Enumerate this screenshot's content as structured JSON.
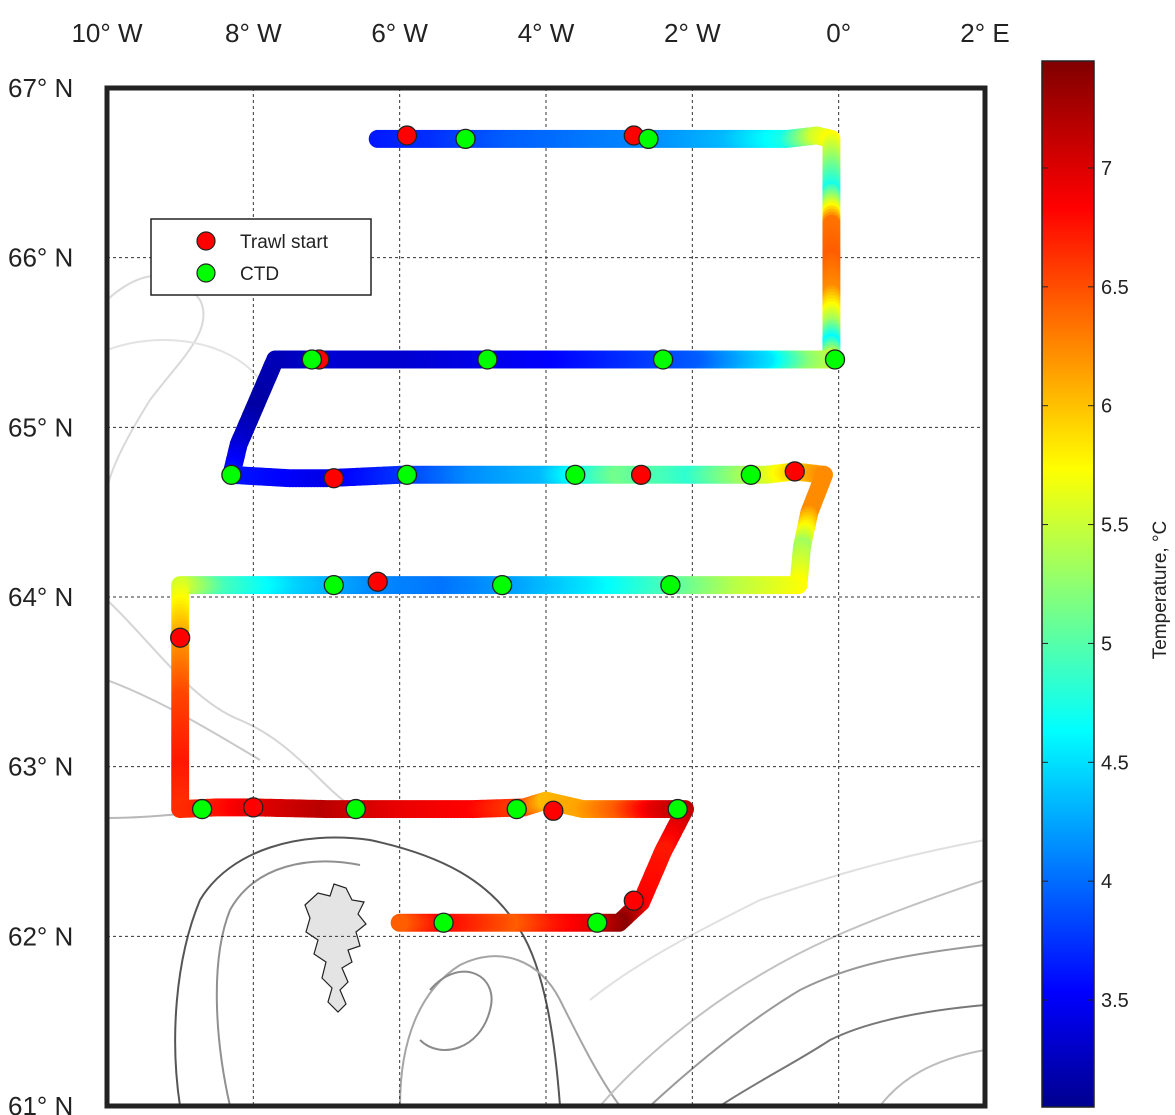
{
  "chart_data": {
    "type": "scatter",
    "title": "",
    "x_axis": {
      "range": [
        -10,
        2
      ],
      "ticks": [
        -10,
        -8,
        -6,
        -4,
        -2,
        0,
        2
      ],
      "tick_labels": [
        "10° W",
        "8° W",
        "6° W",
        "4° W",
        "2° W",
        "0°",
        "2° E"
      ]
    },
    "y_axis": {
      "range": [
        61,
        67
      ],
      "ticks": [
        61,
        62,
        63,
        64,
        65,
        66,
        67
      ],
      "tick_labels": [
        "61° N",
        "62° N",
        "63° N",
        "64° N",
        "65° N",
        "66° N",
        "67° N"
      ]
    },
    "grid": true,
    "legend": {
      "placement": "top-left",
      "entries": [
        {
          "label": "Trawl start",
          "color": "#ff0000"
        },
        {
          "label": "CTD",
          "color": "#00ff00"
        }
      ]
    },
    "colorbar": {
      "label": "Temperature, °C",
      "range": [
        3.05,
        7.45
      ],
      "ticks": [
        3.5,
        4,
        4.5,
        5,
        5.5,
        6,
        6.5,
        7
      ],
      "tick_labels": [
        "3.5",
        "4",
        "4.5",
        "5",
        "5.5",
        "6",
        "6.5",
        "7"
      ],
      "colormap": "jet"
    },
    "track": [
      {
        "lon": -6.3,
        "lat": 66.7,
        "t": 3.7
      },
      {
        "lon": -5.5,
        "lat": 66.7,
        "t": 3.8
      },
      {
        "lon": -4.5,
        "lat": 66.7,
        "t": 4.0
      },
      {
        "lon": -3.5,
        "lat": 66.7,
        "t": 4.1
      },
      {
        "lon": -2.5,
        "lat": 66.7,
        "t": 4.2
      },
      {
        "lon": -1.5,
        "lat": 66.7,
        "t": 4.4
      },
      {
        "lon": -0.7,
        "lat": 66.7,
        "t": 4.8
      },
      {
        "lon": -0.3,
        "lat": 66.72,
        "t": 5.6
      },
      {
        "lon": -0.1,
        "lat": 66.7,
        "t": 5.8
      },
      {
        "lon": -0.1,
        "lat": 66.4,
        "t": 4.8
      },
      {
        "lon": -0.1,
        "lat": 66.2,
        "t": 6.4
      },
      {
        "lon": -0.1,
        "lat": 66.0,
        "t": 6.5
      },
      {
        "lon": -0.1,
        "lat": 65.8,
        "t": 6.3
      },
      {
        "lon": -0.1,
        "lat": 65.6,
        "t": 5.4
      },
      {
        "lon": -0.1,
        "lat": 65.5,
        "t": 4.7
      },
      {
        "lon": -0.1,
        "lat": 65.4,
        "t": 5.6
      },
      {
        "lon": -0.5,
        "lat": 65.4,
        "t": 5.3
      },
      {
        "lon": -1.0,
        "lat": 65.4,
        "t": 4.6
      },
      {
        "lon": -2.0,
        "lat": 65.4,
        "t": 4.0
      },
      {
        "lon": -3.0,
        "lat": 65.4,
        "t": 3.8
      },
      {
        "lon": -4.0,
        "lat": 65.4,
        "t": 3.6
      },
      {
        "lon": -5.0,
        "lat": 65.4,
        "t": 3.5
      },
      {
        "lon": -6.0,
        "lat": 65.4,
        "t": 3.4
      },
      {
        "lon": -7.0,
        "lat": 65.4,
        "t": 3.4
      },
      {
        "lon": -7.7,
        "lat": 65.4,
        "t": 3.3
      },
      {
        "lon": -8.0,
        "lat": 65.1,
        "t": 3.2
      },
      {
        "lon": -8.2,
        "lat": 64.9,
        "t": 3.4
      },
      {
        "lon": -8.3,
        "lat": 64.72,
        "t": 3.7
      },
      {
        "lon": -7.5,
        "lat": 64.7,
        "t": 3.6
      },
      {
        "lon": -7.0,
        "lat": 64.7,
        "t": 3.5
      },
      {
        "lon": -6.0,
        "lat": 64.72,
        "t": 3.8
      },
      {
        "lon": -5.0,
        "lat": 64.72,
        "t": 4.2
      },
      {
        "lon": -4.0,
        "lat": 64.72,
        "t": 4.4
      },
      {
        "lon": -3.0,
        "lat": 64.72,
        "t": 5.2
      },
      {
        "lon": -2.0,
        "lat": 64.72,
        "t": 4.9
      },
      {
        "lon": -1.0,
        "lat": 64.72,
        "t": 5.6
      },
      {
        "lon": -0.6,
        "lat": 64.74,
        "t": 6.0
      },
      {
        "lon": -0.2,
        "lat": 64.72,
        "t": 6.3
      },
      {
        "lon": -0.4,
        "lat": 64.5,
        "t": 6.3
      },
      {
        "lon": -0.5,
        "lat": 64.3,
        "t": 5.4
      },
      {
        "lon": -0.55,
        "lat": 64.07,
        "t": 5.8
      },
      {
        "lon": -1.5,
        "lat": 64.07,
        "t": 5.5
      },
      {
        "lon": -2.5,
        "lat": 64.07,
        "t": 5.0
      },
      {
        "lon": -3.5,
        "lat": 64.07,
        "t": 4.6
      },
      {
        "lon": -4.5,
        "lat": 64.07,
        "t": 4.3
      },
      {
        "lon": -5.5,
        "lat": 64.07,
        "t": 4.1
      },
      {
        "lon": -6.5,
        "lat": 64.07,
        "t": 4.2
      },
      {
        "lon": -7.5,
        "lat": 64.07,
        "t": 4.5
      },
      {
        "lon": -8.5,
        "lat": 64.07,
        "t": 5.0
      },
      {
        "lon": -9.0,
        "lat": 64.07,
        "t": 5.6
      },
      {
        "lon": -9.0,
        "lat": 63.75,
        "t": 6.2
      },
      {
        "lon": -9.0,
        "lat": 63.4,
        "t": 6.6
      },
      {
        "lon": -9.0,
        "lat": 63.0,
        "t": 6.8
      },
      {
        "lon": -9.0,
        "lat": 62.75,
        "t": 6.7
      },
      {
        "lon": -8.5,
        "lat": 62.76,
        "t": 6.8
      },
      {
        "lon": -8.0,
        "lat": 62.76,
        "t": 7.0
      },
      {
        "lon": -7.0,
        "lat": 62.75,
        "t": 7.2
      },
      {
        "lon": -6.0,
        "lat": 62.75,
        "t": 7.0
      },
      {
        "lon": -5.0,
        "lat": 62.75,
        "t": 6.9
      },
      {
        "lon": -4.3,
        "lat": 62.76,
        "t": 6.6
      },
      {
        "lon": -4.0,
        "lat": 62.8,
        "t": 6.1
      },
      {
        "lon": -3.5,
        "lat": 62.75,
        "t": 6.2
      },
      {
        "lon": -3.0,
        "lat": 62.75,
        "t": 6.5
      },
      {
        "lon": -2.5,
        "lat": 62.75,
        "t": 7.0
      },
      {
        "lon": -2.1,
        "lat": 62.75,
        "t": 7.2
      },
      {
        "lon": -2.4,
        "lat": 62.5,
        "t": 6.8
      },
      {
        "lon": -2.7,
        "lat": 62.2,
        "t": 6.9
      },
      {
        "lon": -3.0,
        "lat": 62.08,
        "t": 7.4
      },
      {
        "lon": -3.5,
        "lat": 62.08,
        "t": 7.0
      },
      {
        "lon": -4.0,
        "lat": 62.08,
        "t": 6.8
      },
      {
        "lon": -4.5,
        "lat": 62.08,
        "t": 6.5
      },
      {
        "lon": -5.0,
        "lat": 62.08,
        "t": 6.7
      },
      {
        "lon": -5.5,
        "lat": 62.08,
        "t": 6.9
      },
      {
        "lon": -6.0,
        "lat": 62.08,
        "t": 6.5
      }
    ],
    "trawl_start": [
      {
        "lon": -5.9,
        "lat": 66.72
      },
      {
        "lon": -2.8,
        "lat": 66.72
      },
      {
        "lon": -7.1,
        "lat": 65.4
      },
      {
        "lon": -6.9,
        "lat": 64.7
      },
      {
        "lon": -2.7,
        "lat": 64.72
      },
      {
        "lon": -0.6,
        "lat": 64.74
      },
      {
        "lon": -6.3,
        "lat": 64.09
      },
      {
        "lon": -9.0,
        "lat": 63.76
      },
      {
        "lon": -8.0,
        "lat": 62.76
      },
      {
        "lon": -3.9,
        "lat": 62.74
      },
      {
        "lon": -2.8,
        "lat": 62.21
      }
    ],
    "ctd": [
      {
        "lon": -5.1,
        "lat": 66.7
      },
      {
        "lon": -2.6,
        "lat": 66.7
      },
      {
        "lon": -7.2,
        "lat": 65.4
      },
      {
        "lon": -4.8,
        "lat": 65.4
      },
      {
        "lon": -2.4,
        "lat": 65.4
      },
      {
        "lon": -0.05,
        "lat": 65.4
      },
      {
        "lon": -8.3,
        "lat": 64.72
      },
      {
        "lon": -5.9,
        "lat": 64.72
      },
      {
        "lon": -3.6,
        "lat": 64.72
      },
      {
        "lon": -1.2,
        "lat": 64.72
      },
      {
        "lon": -6.9,
        "lat": 64.07
      },
      {
        "lon": -4.6,
        "lat": 64.07
      },
      {
        "lon": -2.3,
        "lat": 64.07
      },
      {
        "lon": -8.7,
        "lat": 62.75
      },
      {
        "lon": -6.6,
        "lat": 62.75
      },
      {
        "lon": -4.4,
        "lat": 62.75
      },
      {
        "lon": -2.2,
        "lat": 62.75
      },
      {
        "lon": -5.4,
        "lat": 62.08
      },
      {
        "lon": -3.3,
        "lat": 62.08
      }
    ]
  }
}
